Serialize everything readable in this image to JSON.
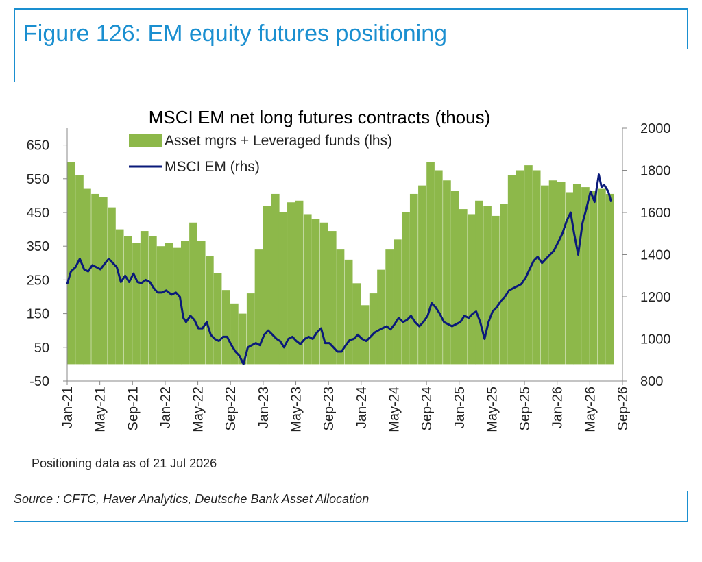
{
  "figure_title": "Figure 126: EM equity futures positioning",
  "footnote": "Positioning data as of 21 Jul 2026",
  "source": "Source : CFTC, Haver Analytics, Deutsche Bank Asset Allocation",
  "colors": {
    "bars": "#8db84a",
    "line": "#0a1a7a",
    "accent": "#1a8fd0"
  },
  "chart_data": {
    "type": "bar",
    "title": "MSCI EM net long futures contracts  (thous)",
    "x_ticks": [
      "Jan-21",
      "May-21",
      "Sep-21",
      "Jan-22",
      "May-22",
      "Sep-22",
      "Jan-23",
      "May-23",
      "Sep-23",
      "Jan-24",
      "May-24",
      "Sep-24",
      "Jan-25",
      "May-25",
      "Sep-25",
      "Jan-26",
      "May-26",
      "Sep-26"
    ],
    "x_range": [
      "2021-01-01",
      "2026-09-01"
    ],
    "y_left": {
      "ticks": [
        650,
        550,
        450,
        350,
        250,
        150,
        50,
        -50
      ],
      "range": [
        -50,
        700
      ]
    },
    "y_right": {
      "ticks": [
        2000,
        1800,
        1600,
        1400,
        1200,
        1000,
        800
      ],
      "range": [
        800,
        2000
      ]
    },
    "legend_position": "top-center",
    "series": [
      {
        "name": "Asset mgrs + Leveraged funds (lhs)",
        "type": "bar",
        "axis": "left",
        "points": [
          [
            "2021-01-01",
            600
          ],
          [
            "2021-02-01",
            560
          ],
          [
            "2021-03-01",
            520
          ],
          [
            "2021-04-01",
            505
          ],
          [
            "2021-05-01",
            495
          ],
          [
            "2021-06-01",
            465
          ],
          [
            "2021-07-01",
            400
          ],
          [
            "2021-08-01",
            380
          ],
          [
            "2021-09-01",
            360
          ],
          [
            "2021-10-01",
            395
          ],
          [
            "2021-11-01",
            380
          ],
          [
            "2021-12-01",
            350
          ],
          [
            "2022-01-01",
            360
          ],
          [
            "2022-02-01",
            345
          ],
          [
            "2022-03-01",
            365
          ],
          [
            "2022-04-01",
            420
          ],
          [
            "2022-05-01",
            365
          ],
          [
            "2022-06-01",
            320
          ],
          [
            "2022-07-01",
            270
          ],
          [
            "2022-08-01",
            220
          ],
          [
            "2022-09-01",
            180
          ],
          [
            "2022-10-01",
            150
          ],
          [
            "2022-11-01",
            210
          ],
          [
            "2022-12-01",
            340
          ],
          [
            "2023-01-01",
            470
          ],
          [
            "2023-02-01",
            505
          ],
          [
            "2023-03-01",
            450
          ],
          [
            "2023-04-01",
            480
          ],
          [
            "2023-05-01",
            485
          ],
          [
            "2023-06-01",
            445
          ],
          [
            "2023-07-01",
            430
          ],
          [
            "2023-08-01",
            420
          ],
          [
            "2023-09-01",
            395
          ],
          [
            "2023-10-01",
            340
          ],
          [
            "2023-11-01",
            310
          ],
          [
            "2023-12-01",
            240
          ],
          [
            "2024-01-01",
            175
          ],
          [
            "2024-02-01",
            210
          ],
          [
            "2024-03-01",
            280
          ],
          [
            "2024-04-01",
            340
          ],
          [
            "2024-05-01",
            370
          ],
          [
            "2024-06-01",
            450
          ],
          [
            "2024-07-01",
            505
          ],
          [
            "2024-08-01",
            530
          ],
          [
            "2024-09-01",
            600
          ],
          [
            "2024-10-01",
            575
          ],
          [
            "2024-11-01",
            545
          ],
          [
            "2024-12-01",
            515
          ],
          [
            "2025-01-01",
            460
          ],
          [
            "2025-02-01",
            445
          ],
          [
            "2025-03-01",
            485
          ],
          [
            "2025-04-01",
            470
          ],
          [
            "2025-05-01",
            440
          ],
          [
            "2025-06-01",
            475
          ],
          [
            "2025-07-01",
            560
          ],
          [
            "2025-08-01",
            575
          ],
          [
            "2025-09-01",
            590
          ],
          [
            "2025-10-01",
            575
          ],
          [
            "2025-11-01",
            530
          ],
          [
            "2025-12-01",
            545
          ],
          [
            "2026-01-01",
            540
          ],
          [
            "2026-02-01",
            510
          ],
          [
            "2026-03-01",
            535
          ],
          [
            "2026-04-01",
            525
          ],
          [
            "2026-05-01",
            515
          ],
          [
            "2026-06-01",
            520
          ],
          [
            "2026-07-01",
            505
          ]
        ]
      },
      {
        "name": "MSCI EM (rhs)",
        "type": "line",
        "axis": "right",
        "points": [
          [
            "2021-01-01",
            1260
          ],
          [
            "2021-01-15",
            1320
          ],
          [
            "2021-02-01",
            1340
          ],
          [
            "2021-02-17",
            1380
          ],
          [
            "2021-03-05",
            1330
          ],
          [
            "2021-03-20",
            1320
          ],
          [
            "2021-04-05",
            1350
          ],
          [
            "2021-04-20",
            1340
          ],
          [
            "2021-05-05",
            1330
          ],
          [
            "2021-05-20",
            1355
          ],
          [
            "2021-06-05",
            1380
          ],
          [
            "2021-06-20",
            1360
          ],
          [
            "2021-07-05",
            1340
          ],
          [
            "2021-07-20",
            1270
          ],
          [
            "2021-08-05",
            1300
          ],
          [
            "2021-08-20",
            1270
          ],
          [
            "2021-09-05",
            1310
          ],
          [
            "2021-09-20",
            1270
          ],
          [
            "2021-10-05",
            1265
          ],
          [
            "2021-10-20",
            1280
          ],
          [
            "2021-11-05",
            1270
          ],
          [
            "2021-11-20",
            1240
          ],
          [
            "2021-12-05",
            1220
          ],
          [
            "2021-12-20",
            1220
          ],
          [
            "2022-01-05",
            1230
          ],
          [
            "2022-01-25",
            1210
          ],
          [
            "2022-02-10",
            1220
          ],
          [
            "2022-02-25",
            1200
          ],
          [
            "2022-03-10",
            1100
          ],
          [
            "2022-03-20",
            1080
          ],
          [
            "2022-04-05",
            1110
          ],
          [
            "2022-04-20",
            1090
          ],
          [
            "2022-05-05",
            1050
          ],
          [
            "2022-05-20",
            1050
          ],
          [
            "2022-06-05",
            1080
          ],
          [
            "2022-06-20",
            1020
          ],
          [
            "2022-07-05",
            1000
          ],
          [
            "2022-07-20",
            990
          ],
          [
            "2022-08-05",
            1010
          ],
          [
            "2022-08-20",
            1010
          ],
          [
            "2022-09-05",
            970
          ],
          [
            "2022-09-20",
            940
          ],
          [
            "2022-10-05",
            920
          ],
          [
            "2022-10-20",
            880
          ],
          [
            "2022-11-05",
            960
          ],
          [
            "2022-11-20",
            970
          ],
          [
            "2022-12-05",
            980
          ],
          [
            "2022-12-20",
            970
          ],
          [
            "2023-01-05",
            1020
          ],
          [
            "2023-01-20",
            1040
          ],
          [
            "2023-02-05",
            1020
          ],
          [
            "2023-02-20",
            1000
          ],
          [
            "2023-03-05",
            990
          ],
          [
            "2023-03-20",
            960
          ],
          [
            "2023-04-05",
            1000
          ],
          [
            "2023-04-20",
            1010
          ],
          [
            "2023-05-05",
            990
          ],
          [
            "2023-05-20",
            975
          ],
          [
            "2023-06-05",
            1000
          ],
          [
            "2023-06-20",
            1010
          ],
          [
            "2023-07-05",
            1000
          ],
          [
            "2023-07-20",
            1030
          ],
          [
            "2023-08-05",
            1050
          ],
          [
            "2023-08-20",
            980
          ],
          [
            "2023-09-05",
            980
          ],
          [
            "2023-09-20",
            960
          ],
          [
            "2023-10-05",
            940
          ],
          [
            "2023-10-20",
            940
          ],
          [
            "2023-11-05",
            970
          ],
          [
            "2023-11-20",
            995
          ],
          [
            "2023-12-05",
            1000
          ],
          [
            "2023-12-20",
            1020
          ],
          [
            "2024-01-05",
            1000
          ],
          [
            "2024-01-20",
            990
          ],
          [
            "2024-02-05",
            1010
          ],
          [
            "2024-02-20",
            1030
          ],
          [
            "2024-03-05",
            1040
          ],
          [
            "2024-03-20",
            1050
          ],
          [
            "2024-04-05",
            1060
          ],
          [
            "2024-04-20",
            1045
          ],
          [
            "2024-05-05",
            1070
          ],
          [
            "2024-05-20",
            1100
          ],
          [
            "2024-06-05",
            1080
          ],
          [
            "2024-06-20",
            1090
          ],
          [
            "2024-07-05",
            1110
          ],
          [
            "2024-07-20",
            1080
          ],
          [
            "2024-08-05",
            1060
          ],
          [
            "2024-08-20",
            1080
          ],
          [
            "2024-09-05",
            1110
          ],
          [
            "2024-09-20",
            1170
          ],
          [
            "2024-10-05",
            1150
          ],
          [
            "2024-10-20",
            1120
          ],
          [
            "2024-11-05",
            1080
          ],
          [
            "2024-11-20",
            1070
          ],
          [
            "2024-12-05",
            1060
          ],
          [
            "2024-12-20",
            1070
          ],
          [
            "2025-01-05",
            1080
          ],
          [
            "2025-01-20",
            1110
          ],
          [
            "2025-02-05",
            1100
          ],
          [
            "2025-02-20",
            1120
          ],
          [
            "2025-03-05",
            1130
          ],
          [
            "2025-03-20",
            1080
          ],
          [
            "2025-04-05",
            1000
          ],
          [
            "2025-04-20",
            1080
          ],
          [
            "2025-05-05",
            1130
          ],
          [
            "2025-05-20",
            1150
          ],
          [
            "2025-06-05",
            1180
          ],
          [
            "2025-06-20",
            1200
          ],
          [
            "2025-07-05",
            1230
          ],
          [
            "2025-07-20",
            1240
          ],
          [
            "2025-08-05",
            1250
          ],
          [
            "2025-08-20",
            1260
          ],
          [
            "2025-09-05",
            1290
          ],
          [
            "2025-09-20",
            1330
          ],
          [
            "2025-10-05",
            1370
          ],
          [
            "2025-10-20",
            1390
          ],
          [
            "2025-11-05",
            1360
          ],
          [
            "2025-11-20",
            1380
          ],
          [
            "2025-12-05",
            1400
          ],
          [
            "2025-12-20",
            1420
          ],
          [
            "2026-01-05",
            1460
          ],
          [
            "2026-01-20",
            1500
          ],
          [
            "2026-02-05",
            1560
          ],
          [
            "2026-02-20",
            1600
          ],
          [
            "2026-03-05",
            1500
          ],
          [
            "2026-03-20",
            1400
          ],
          [
            "2026-04-05",
            1550
          ],
          [
            "2026-04-20",
            1620
          ],
          [
            "2026-05-05",
            1700
          ],
          [
            "2026-05-20",
            1650
          ],
          [
            "2026-06-05",
            1780
          ],
          [
            "2026-06-15",
            1720
          ],
          [
            "2026-06-25",
            1730
          ],
          [
            "2026-07-10",
            1700
          ],
          [
            "2026-07-21",
            1650
          ]
        ]
      }
    ]
  }
}
